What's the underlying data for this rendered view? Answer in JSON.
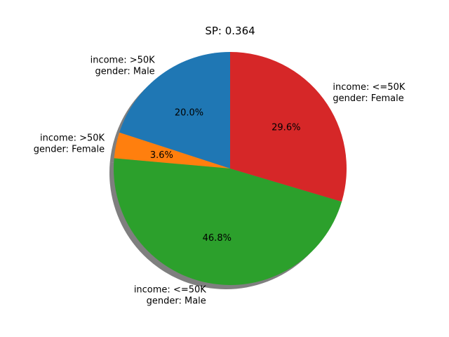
{
  "chart_data": {
    "type": "pie",
    "title": "SP: 0.364",
    "shadow": true,
    "start_angle_deg": 90,
    "direction": "counterclockwise",
    "slices": [
      {
        "label_line1": "income: >50K",
        "label_line2": "gender: Male",
        "value": 20.0,
        "pct_label": "20.0%",
        "color": "#1f77b4"
      },
      {
        "label_line1": "income: >50K",
        "label_line2": "gender: Female",
        "value": 3.6,
        "pct_label": "3.6%",
        "color": "#ff7f0e"
      },
      {
        "label_line1": "income: <=50K",
        "label_line2": "gender: Male",
        "value": 46.8,
        "pct_label": "46.8%",
        "color": "#2ca02c"
      },
      {
        "label_line1": "income: <=50K",
        "label_line2": "gender: Female",
        "value": 29.6,
        "pct_label": "29.6%",
        "color": "#d62728"
      }
    ]
  }
}
